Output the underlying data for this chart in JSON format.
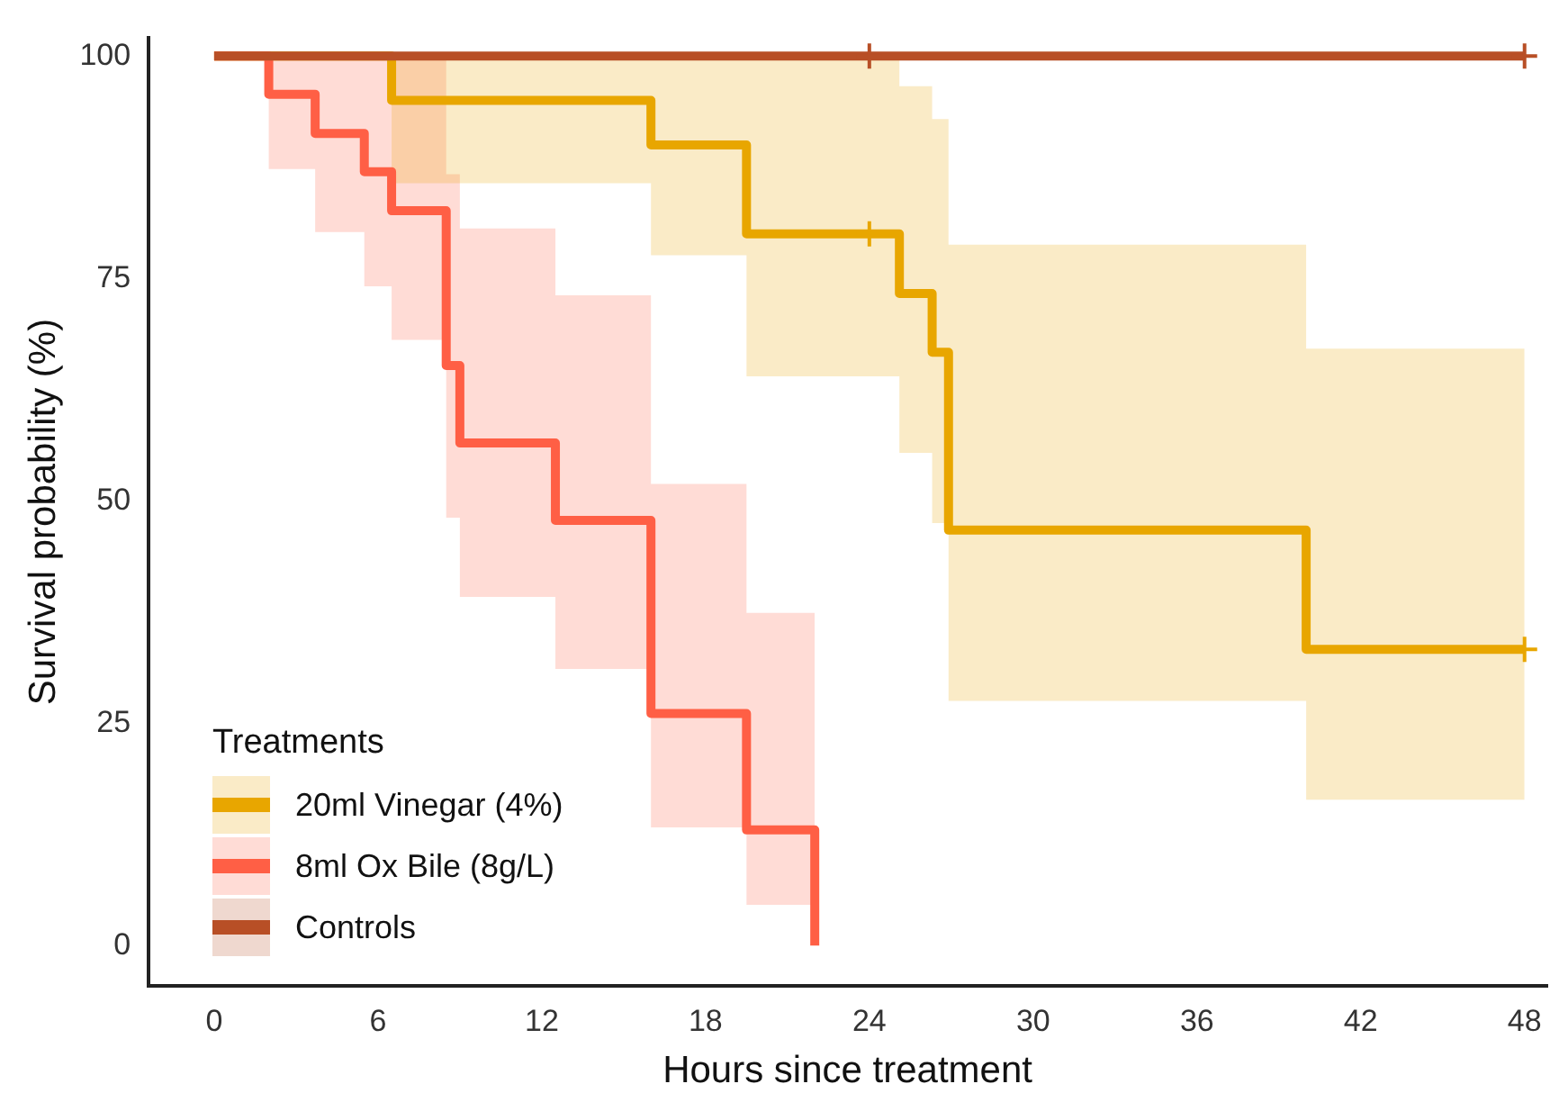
{
  "chart_data": {
    "type": "step",
    "xlabel": "Hours since treatment",
    "ylabel": "Survival probability (%)",
    "legend_title": "Treatments",
    "legend": "bottom left",
    "grid": false,
    "xlim": [
      -2.4,
      48.8
    ],
    "ylim": [
      -4.5,
      102
    ],
    "xticks": [
      0,
      6,
      12,
      18,
      24,
      30,
      36,
      42,
      48
    ],
    "yticks": [
      0,
      25,
      50,
      75,
      100
    ],
    "series": [
      {
        "name": "20ml Vinegar (4%)",
        "color": "#e8a600",
        "x": [
          0,
          6.5,
          16,
          19.5,
          25.1,
          26.3,
          26.9,
          40,
          48
        ],
        "values": [
          100,
          95,
          90,
          80,
          73.3,
          66.7,
          46.7,
          33.3,
          33.3
        ],
        "lower": [
          100,
          85.7,
          77.6,
          64,
          55.4,
          47.5,
          27.5,
          16.4,
          16.4
        ],
        "upper": [
          100,
          100,
          100,
          100,
          96.6,
          92.9,
          78.8,
          67.1,
          67.1
        ]
      },
      {
        "name": "8ml Ox Bile (8g/L)",
        "color": "#ff5f45",
        "x": [
          0,
          2,
          3.7,
          5.5,
          6.5,
          8.5,
          9,
          12.5,
          16,
          19.5,
          22
        ],
        "values": [
          100,
          95.7,
          91.3,
          87,
          82.6,
          65.2,
          56.5,
          47.8,
          26.1,
          13,
          0
        ],
        "lower": [
          100,
          87.3,
          80.2,
          74.1,
          68.1,
          48.1,
          39.2,
          31.1,
          13.3,
          4.6,
          4.6
        ],
        "upper": [
          100,
          100,
          100,
          100,
          100,
          86.7,
          80.6,
          73.1,
          51.9,
          37.4,
          37.4
        ]
      },
      {
        "name": "Controls",
        "color": "#b84f26",
        "x": [
          0,
          48
        ],
        "values": [
          100,
          100
        ]
      },
      {
        "type": "scatter",
        "marker": "cross",
        "color": "#e8a600",
        "x": [
          24,
          48
        ],
        "values": [
          80,
          33.3
        ]
      },
      {
        "type": "scatter",
        "marker": "cross",
        "color": "#b84f26",
        "x": [
          24,
          48
        ],
        "values": [
          100,
          100
        ]
      }
    ]
  }
}
